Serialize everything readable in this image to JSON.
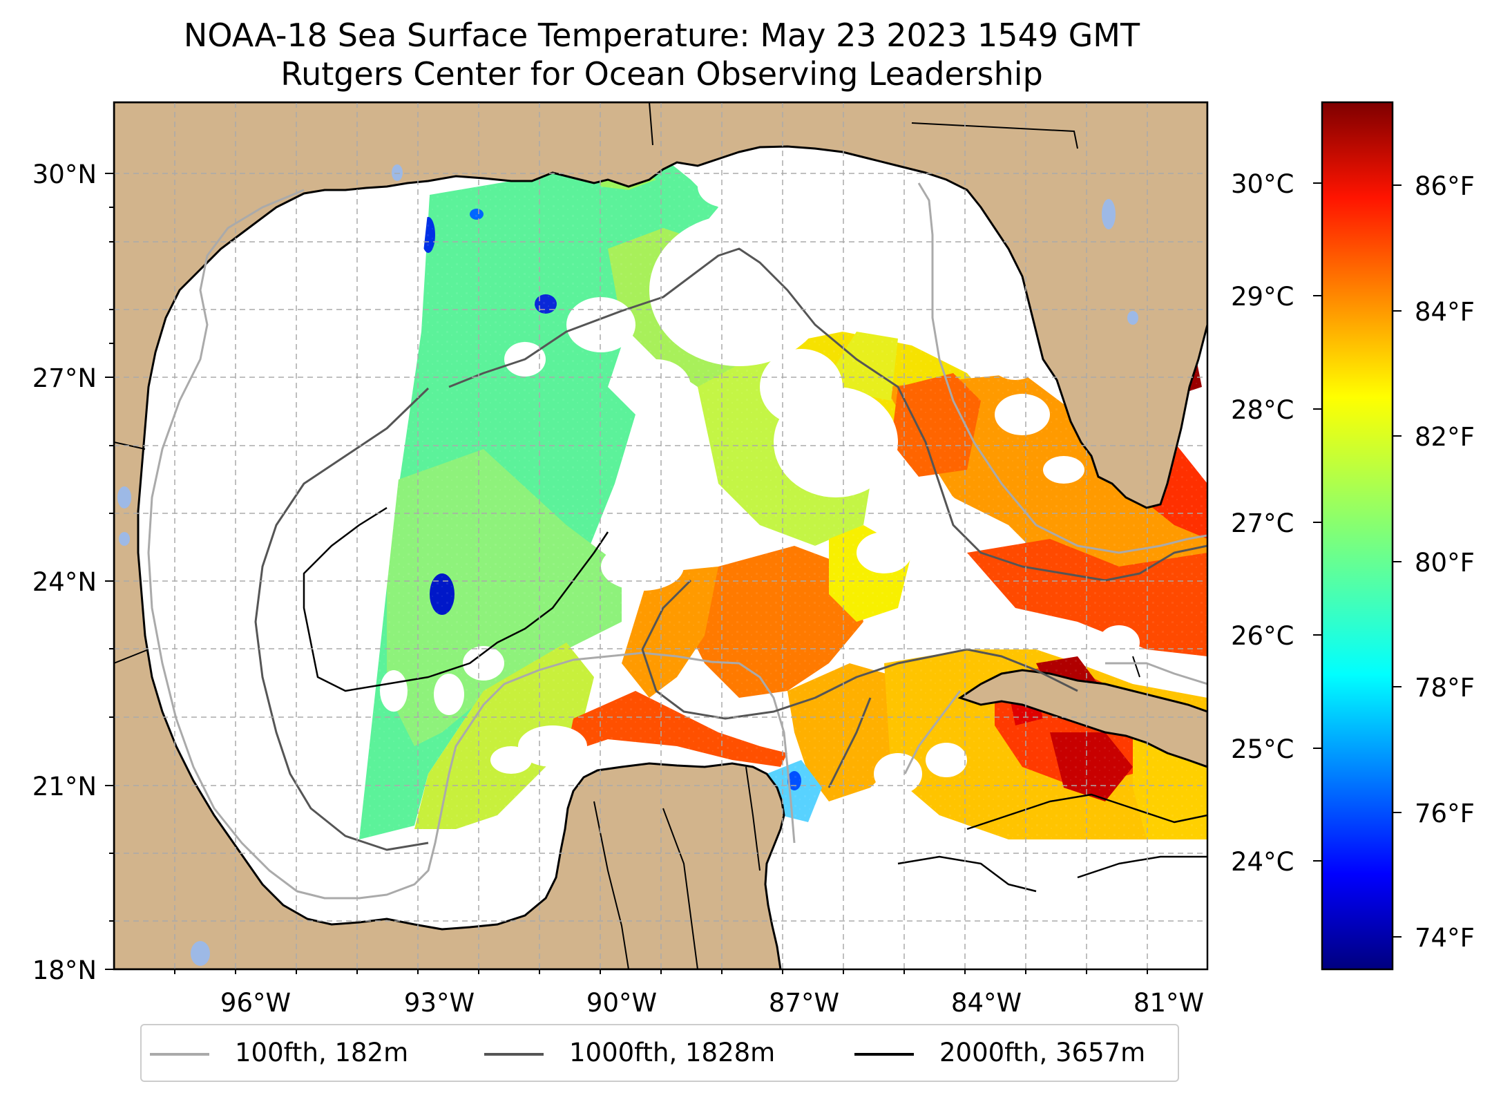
{
  "title": {
    "line1": "NOAA-18 Sea Surface Temperature: May 23 2023 1549 GMT",
    "line2": "Rutgers Center for Ocean Observing Leadership"
  },
  "colors": {
    "land": "#d2b48c",
    "water_no_data": "#ffffff",
    "coastline": "#000000",
    "grid": "#aaaaaa",
    "lakes": "#9db9e6",
    "contour_100": "#aaaaaa",
    "contour_1000": "#555555",
    "contour_2000": "#000000"
  },
  "map": {
    "projection": "plate-carree",
    "lon_range": [
      -98.0,
      -80.0
    ],
    "lat_range": [
      18.0,
      31.0
    ],
    "lat_ticks": [
      "18°N",
      "21°N",
      "24°N",
      "27°N",
      "30°N"
    ],
    "lon_ticks": [
      "96°W",
      "93°W",
      "90°W",
      "87°W",
      "84°W",
      "81°W"
    ],
    "gridlines": "dashed"
  },
  "colorbar": {
    "colormap": "jet",
    "celsius_ticks": [
      "24°C",
      "25°C",
      "26°C",
      "27°C",
      "28°C",
      "29°C",
      "30°C"
    ],
    "fahrenheit_ticks": [
      "74°F",
      "76°F",
      "78°F",
      "80°F",
      "82°F",
      "84°F",
      "86°F"
    ]
  },
  "legend": {
    "items": [
      {
        "label": "100fth, 182m",
        "color": "#aaaaaa"
      },
      {
        "label": "1000fth, 1828m",
        "color": "#555555"
      },
      {
        "label": "2000fth, 3657m",
        "color": "#000000"
      }
    ]
  }
}
